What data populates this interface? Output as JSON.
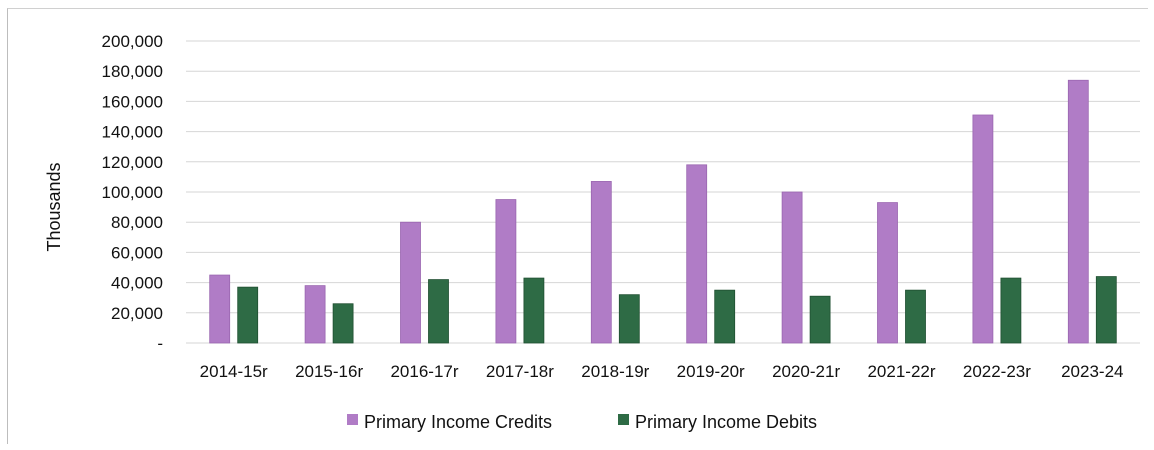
{
  "chart_data": {
    "type": "bar",
    "categories": [
      "2014-15r",
      "2015-16r",
      "2016-17r",
      "2017-18r",
      "2018-19r",
      "2019-20r",
      "2020-21r",
      "2021-22r",
      "2022-23r",
      "2023-24"
    ],
    "series": [
      {
        "name": "Primary Income Credits",
        "color": "#b07cc6",
        "values": [
          45000,
          38000,
          80000,
          95000,
          107000,
          118000,
          100000,
          93000,
          151000,
          174000
        ]
      },
      {
        "name": "Primary Income Debits",
        "color": "#2e6b45",
        "values": [
          37000,
          26000,
          42000,
          43000,
          32000,
          35000,
          31000,
          35000,
          43000,
          44000
        ]
      }
    ],
    "ylabel": "Thousands",
    "ylim": [
      0,
      200000
    ],
    "yticks": [
      "-",
      "20,000",
      "40,000",
      "60,000",
      "80,000",
      "100,000",
      "120,000",
      "140,000",
      "160,000",
      "180,000",
      "200,000"
    ],
    "grid": true,
    "legend_position": "bottom"
  }
}
